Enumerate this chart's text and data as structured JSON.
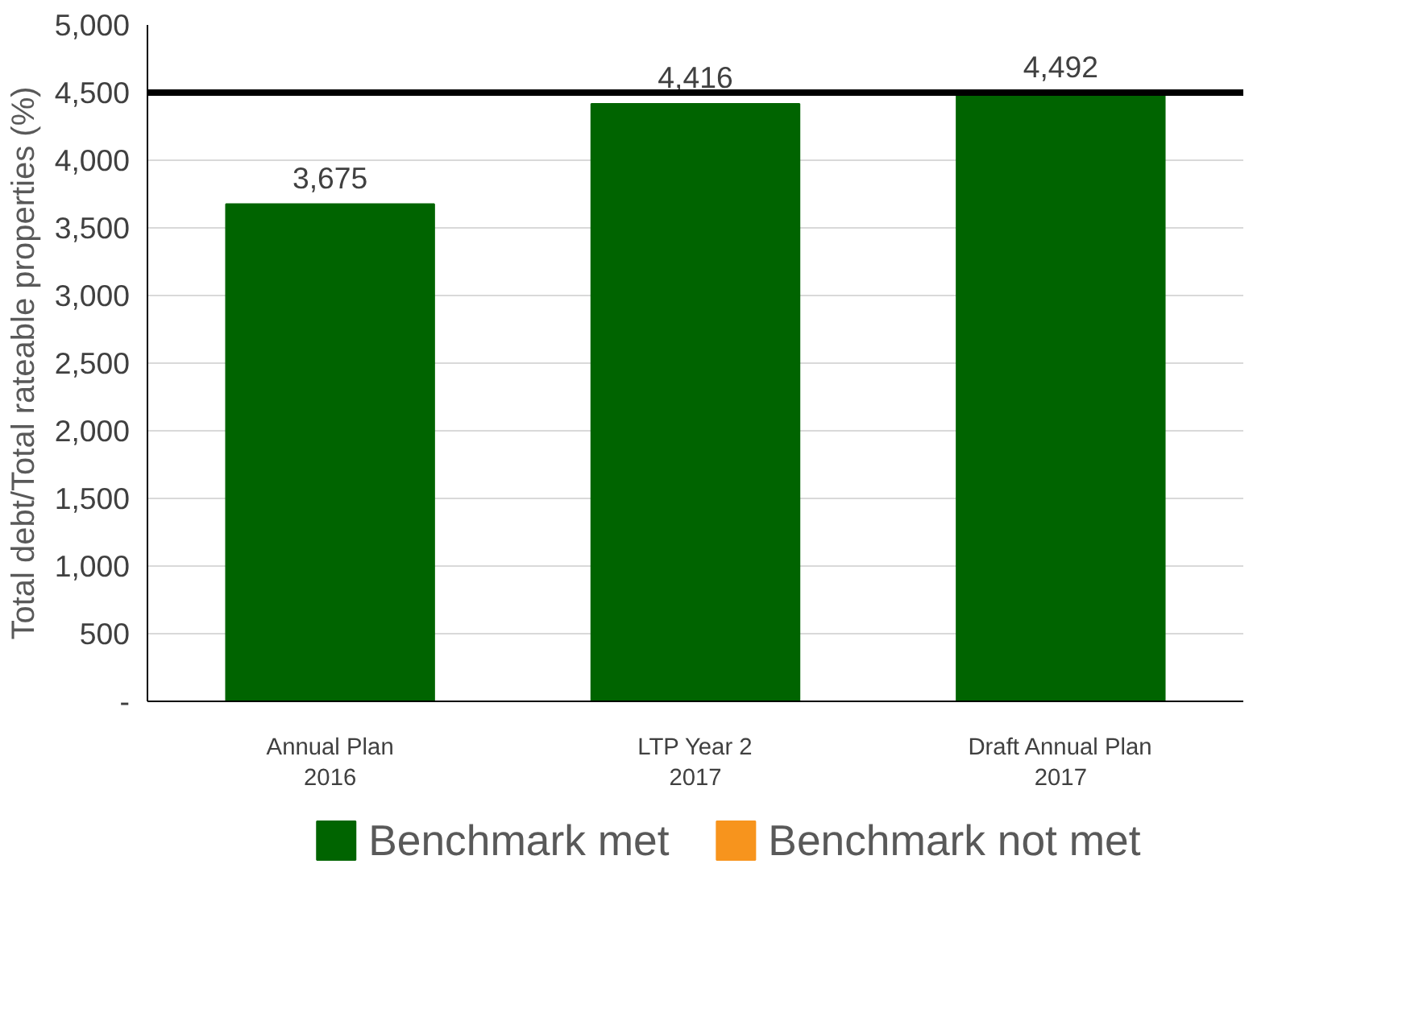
{
  "chart_data": {
    "type": "bar",
    "ylabel": "Total debt/Total rateable properties (%)",
    "categories": [
      "Annual Plan\n2016",
      "LTP Year 2\n2017",
      "Draft Annual Plan\n2017"
    ],
    "series": [
      {
        "name": "Benchmark met",
        "color": "#006400",
        "values": [
          3675,
          4416,
          4492
        ],
        "value_labels": [
          "3,675",
          "4,416",
          "4,492"
        ]
      },
      {
        "name": "Benchmark not met",
        "color": "#f7941d",
        "values": [
          null,
          null,
          null
        ]
      }
    ],
    "ylim": [
      0,
      5000
    ],
    "yticks": [
      {
        "value": 0,
        "label": "-"
      },
      {
        "value": 500,
        "label": "500"
      },
      {
        "value": 1000,
        "label": "1,000"
      },
      {
        "value": 1500,
        "label": "1,500"
      },
      {
        "value": 2000,
        "label": "2,000"
      },
      {
        "value": 2500,
        "label": "2,500"
      },
      {
        "value": 3000,
        "label": "3,000"
      },
      {
        "value": 3500,
        "label": "3,500"
      },
      {
        "value": 4000,
        "label": "4,000"
      },
      {
        "value": 4500,
        "label": "4,500"
      },
      {
        "value": 5000,
        "label": "5,000"
      }
    ],
    "ref_lines": [
      {
        "axis": "y",
        "value": 4500,
        "color": "#000000"
      }
    ],
    "grid": "y",
    "legend": "bottom"
  }
}
